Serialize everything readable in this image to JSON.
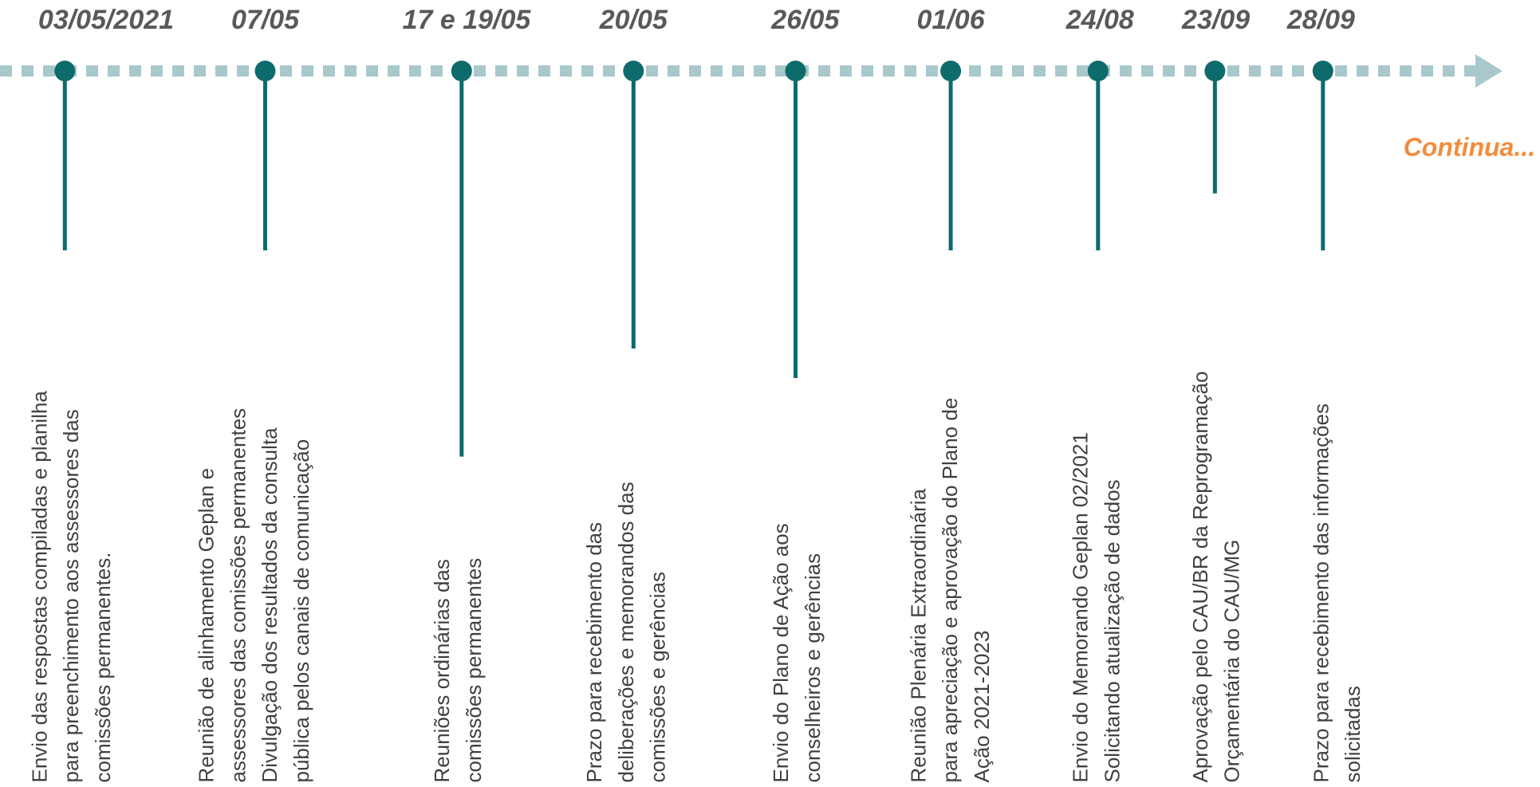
{
  "continue_label": "Continua...",
  "events": [
    {
      "date": "03/05/2021",
      "lines": [
        "Envio das respostas compiladas e planilha",
        "para preenchimento aos assessores das",
        "comissões permanentes."
      ]
    },
    {
      "date": "07/05",
      "lines": [
        "Reunião de alinhamento Geplan e",
        "assessores das comissões permanentes",
        "Divulgação dos resultados da consulta",
        "pública pelos canais de comunicação"
      ]
    },
    {
      "date": "17 e 19/05",
      "lines": [
        "Reuniões ordinárias das",
        "comissões permanentes"
      ]
    },
    {
      "date": "20/05",
      "lines": [
        "Prazo para recebimento das",
        "deliberações e memorandos das",
        "comissões e gerências"
      ]
    },
    {
      "date": "26/05",
      "lines": [
        "Envio do Plano de Ação aos",
        "conselheiros e gerências"
      ]
    },
    {
      "date": "01/06",
      "lines": [
        "Reunião Plenária Extraordinária",
        "para apreciação e aprovação do Plano de",
        "Ação 2021-2023"
      ]
    },
    {
      "date": "24/08",
      "lines": [
        "Envio do Memorando Geplan 02/2021",
        "Solicitando atualização de dados"
      ]
    },
    {
      "date": "23/09",
      "lines": [
        "Aprovação pelo CAU/BR da Reprogramação",
        "Orçamentária do CAU/MG"
      ]
    },
    {
      "date": "28/09",
      "lines": [
        "Prazo para recebimento das informações",
        "solicitadas"
      ]
    }
  ]
}
